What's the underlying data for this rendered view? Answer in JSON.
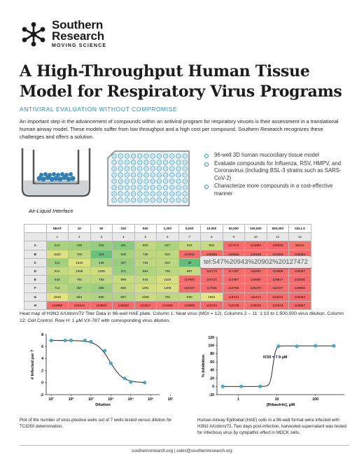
{
  "brand": {
    "line1": "Southern",
    "line2": "Research",
    "tagline": "MOVING SCIENCE"
  },
  "title": "A High-Throughput Human Tissue Model for Respiratory Virus Programs",
  "subtitle": "ANTIVIRAL EVALUATION WITHOUT COMPROMISE",
  "intro": "An important step in the advancement of compounds within an antiviral program for respiratory viruses is their assessment in a translational human airway model. These models suffer from low throughput and a high cost per compound. Southern Research recognizes these challenges and offers a solution.",
  "figure_label": "Air-Liquid Interface",
  "bullets": [
    "96-well 3D human mucociliary tissue model",
    "Evaluate compounds for Influenza, RSV, HMPV, and Coronavirus (including BSL-3 strains such as SARS-CoV-2)",
    "Characterize more compounds in a cost-effective manner"
  ],
  "heatmap": {
    "col_headers": [
      "NEAT",
      "10",
      "50",
      "100",
      "500",
      "1,000",
      "5,000",
      "10,000",
      "50,000",
      "100,000",
      "500,000",
      "CELLS"
    ],
    "col_index": [
      "1",
      "2",
      "3",
      "4",
      "5",
      "6",
      "7",
      "8",
      "9",
      "10",
      "11",
      "12"
    ],
    "rows": [
      {
        "label": "A",
        "values": [
          "513",
          "428",
          "318",
          "251",
          "800",
          "547",
          "943",
          "902",
          "127472",
          "123353",
          "130836",
          "98224"
        ]
      },
      {
        "label": "B",
        "values": [
          "1602",
          "789",
          "119",
          "500",
          "736",
          "822",
          "124811",
          "126389",
          "125266",
          "126188",
          "122494",
          "129065"
        ]
      },
      {
        "label": "C",
        "values": [
          "412",
          "1633",
          "439",
          "337",
          "764",
          "810",
          "40",
          "",
          "",
          "",
          "",
          ""
        ]
      },
      {
        "label": "D",
        "values": [
          "912",
          "1088",
          "1209",
          "371",
          "594",
          "755",
          "887",
          "116773",
          "117407",
          "116363",
          "119905",
          "126097"
        ]
      },
      {
        "label": "E",
        "values": [
          "543",
          "792",
          "783",
          "989",
          "944",
          "1420",
          "117984",
          "118710",
          "114897",
          "119880",
          "129647",
          "132500"
        ]
      },
      {
        "label": "F",
        "values": [
          "714",
          "467",
          "390",
          "880",
          "1301",
          "1408",
          "116447",
          "117536",
          "116769",
          "125270",
          "119107",
          "128856"
        ]
      },
      {
        "label": "G",
        "values": [
          "1918",
          "694",
          "580",
          "657",
          "1000",
          "792",
          "930",
          "1954",
          "116412",
          "115413",
          "123231",
          "128484"
        ]
      },
      {
        "label": "H",
        "values": [
          "119886",
          "120310",
          "123892",
          "125550",
          "123317",
          "121668",
          "119999",
          "123194",
          "118138",
          "120049",
          "123346",
          "129667"
        ]
      }
    ],
    "colors": {
      "low": "#63be7b",
      "mid": "#ffeb84",
      "high": "#f8696b"
    }
  },
  "phone_tooltip": "tel:547%20943%20902%20127472",
  "heat_caption": "Heat map of H3N2 A/Udorn/72 Titer Data in 96-well HAE plate. Column 1: Neat virus (MOI = 12). Columns 2 – 11: 1:10 to 1:500,000 virus dilution. Column 12: Cell Control. Row H: 1 μM VX-787 with corresponding virus dilution.",
  "chart_data": [
    {
      "type": "line",
      "title": "",
      "xlabel": "Dilution",
      "ylabel": "# Infected per 7",
      "x_scale": "log",
      "x_ticks": [
        "10¹",
        "10²",
        "10³",
        "10⁴",
        "10⁵",
        "10⁶",
        "10⁷"
      ],
      "y_ticks": [
        "-2",
        "0",
        "2",
        "4",
        "6",
        "8"
      ],
      "ylim": [
        -2,
        8
      ],
      "points": {
        "x": [
          10,
          50,
          100,
          500,
          1000,
          5000,
          10000,
          50000,
          100000,
          500000
        ],
        "y": [
          7,
          7,
          7,
          7,
          6.8,
          5.3,
          3.2,
          0.7,
          0.1,
          0
        ]
      }
    },
    {
      "type": "line",
      "title": "",
      "xlabel": "[Ribavirin], μM",
      "ylabel": "% Inhibition",
      "x_scale": "log",
      "x_ticks": [
        "1",
        "10",
        "100"
      ],
      "y_ticks": [
        "-20",
        "0",
        "20",
        "40",
        "60",
        "80",
        "100",
        "120"
      ],
      "ylim": [
        -20,
        120
      ],
      "annotation": "IC50 = 7.9 μM",
      "points": {
        "x": [
          0.4,
          1.2,
          3.7,
          11,
          33,
          100,
          300
        ],
        "y": [
          0,
          0,
          0,
          98,
          98,
          99,
          99
        ]
      }
    }
  ],
  "cap_left": "Plot of the number of virus-positive wells out of 7 wells tested versus dilution for TCID50 determination.",
  "cap_right": "Human Airway Epithelial (HAE) cells in a 96-well format were infected with H3N2 A/Udorn/72. Two days post-infection, harvested supernatant was tested for infectious virus by cytopathic effect in MDCK cells.",
  "footer": "southernresearch.org  |  sales@southernresearch.org"
}
